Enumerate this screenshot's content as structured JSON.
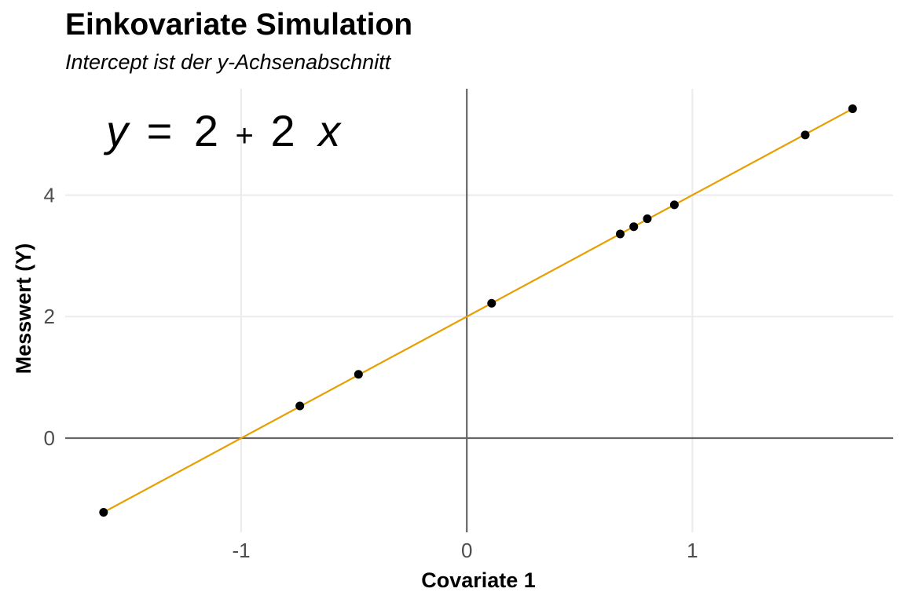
{
  "chart_data": {
    "type": "scatter",
    "title": "Einkovariate Simulation",
    "subtitle": "Intercept ist der y-Achsenabschnitt",
    "xlabel": "Covariate 1",
    "ylabel": "Messwert (Y)",
    "xlim": [
      -1.78,
      1.89
    ],
    "ylim": [
      -1.55,
      5.75
    ],
    "x_ticks": [
      -1,
      0,
      1
    ],
    "y_ticks": [
      0,
      2,
      4
    ],
    "x_tick_labels": [
      "-1",
      "0",
      "1"
    ],
    "y_tick_labels": [
      "0",
      "2",
      "4"
    ],
    "grid": true,
    "points": [
      {
        "x": -1.61,
        "y": -1.22
      },
      {
        "x": -0.74,
        "y": 0.53
      },
      {
        "x": -0.48,
        "y": 1.05
      },
      {
        "x": 0.11,
        "y": 2.22
      },
      {
        "x": 0.68,
        "y": 3.36
      },
      {
        "x": 0.74,
        "y": 3.48
      },
      {
        "x": 0.8,
        "y": 3.61
      },
      {
        "x": 0.92,
        "y": 3.84
      },
      {
        "x": 1.5,
        "y": 4.99
      },
      {
        "x": 1.71,
        "y": 5.42
      }
    ],
    "fit_line": {
      "intercept": 2,
      "slope": 2,
      "x_range": [
        -1.61,
        1.71
      ],
      "color": "#e69f00"
    },
    "point_color": "#000000",
    "reference_lines": {
      "x": 0,
      "y": 0,
      "color": "#666666"
    },
    "annotation": {
      "y_var": "y",
      "equals": "=",
      "intercept": "2",
      "plus": "+",
      "slope": "2",
      "x_var": "x"
    }
  }
}
